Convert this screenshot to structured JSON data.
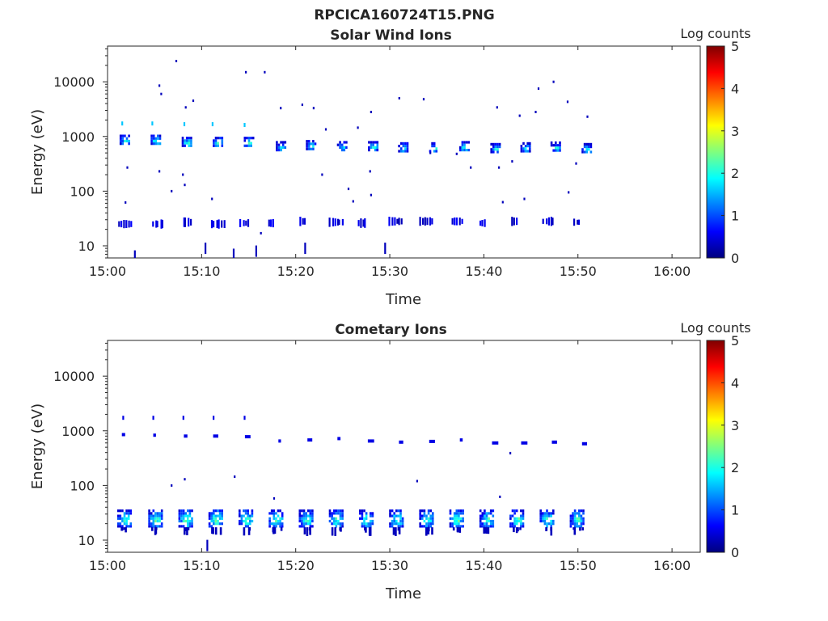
{
  "figure_title": "RPCICA160724T15.PNG",
  "colorscale": [
    "#00007f",
    "#0000ff",
    "#007fff",
    "#00ffff",
    "#7fff7f",
    "#ffff00",
    "#ff7f00",
    "#ff0000",
    "#7f0000"
  ],
  "chart_data": [
    {
      "type": "heatmap",
      "title": "Solar Wind Ions",
      "xlabel": "Time",
      "ylabel": "Energy (eV)",
      "x_ticks": [
        "15:00",
        "15:10",
        "15:20",
        "15:30",
        "15:40",
        "15:50",
        "16:00"
      ],
      "xlim": [
        "15:00",
        "16:03"
      ],
      "y_scale": "log",
      "y_ticks": [
        "10",
        "100",
        "1000",
        "10000"
      ],
      "ylim": [
        6,
        45000
      ],
      "colorbar": {
        "label": "Log counts",
        "ticks": [
          "0",
          "1",
          "2",
          "3",
          "4",
          "5"
        ],
        "range": [
          0,
          5
        ]
      },
      "clusters": [
        {
          "t": 1.8,
          "e": 850,
          "v": 2.2
        },
        {
          "t": 5.1,
          "e": 850,
          "v": 2.4
        },
        {
          "t": 8.4,
          "e": 780,
          "v": 2.3
        },
        {
          "t": 11.7,
          "e": 780,
          "v": 2.4
        },
        {
          "t": 15.0,
          "e": 780,
          "v": 2.4
        },
        {
          "t": 18.4,
          "e": 650,
          "v": 2.0
        },
        {
          "t": 21.6,
          "e": 680,
          "v": 2.1
        },
        {
          "t": 24.9,
          "e": 650,
          "v": 2.0
        },
        {
          "t": 28.2,
          "e": 650,
          "v": 2.2
        },
        {
          "t": 31.4,
          "e": 620,
          "v": 2.1
        },
        {
          "t": 34.7,
          "e": 620,
          "v": 2.1
        },
        {
          "t": 37.9,
          "e": 650,
          "v": 2.3
        },
        {
          "t": 41.2,
          "e": 600,
          "v": 2.0
        },
        {
          "t": 44.4,
          "e": 620,
          "v": 2.0
        },
        {
          "t": 47.6,
          "e": 640,
          "v": 2.0
        },
        {
          "t": 50.9,
          "e": 600,
          "v": 2.1
        }
      ],
      "low_energy_strips": [
        {
          "t": 1.6,
          "e": 25
        },
        {
          "t": 5.2,
          "e": 25
        },
        {
          "t": 8.4,
          "e": 27
        },
        {
          "t": 11.4,
          "e": 25
        },
        {
          "t": 14.5,
          "e": 26
        },
        {
          "t": 17.5,
          "e": 26
        },
        {
          "t": 20.8,
          "e": 28
        },
        {
          "t": 24.0,
          "e": 27
        },
        {
          "t": 27.0,
          "e": 26
        },
        {
          "t": 30.3,
          "e": 28
        },
        {
          "t": 33.6,
          "e": 28
        },
        {
          "t": 37.0,
          "e": 28
        },
        {
          "t": 40.0,
          "e": 26
        },
        {
          "t": 43.3,
          "e": 28
        },
        {
          "t": 46.7,
          "e": 28
        },
        {
          "t": 50.0,
          "e": 27
        }
      ],
      "high_energy_lines": [
        {
          "t": 1.6,
          "e": 1700
        },
        {
          "t": 4.8,
          "e": 1700
        },
        {
          "t": 8.2,
          "e": 1650
        },
        {
          "t": 11.2,
          "e": 1650
        },
        {
          "t": 14.6,
          "e": 1600
        }
      ],
      "scatter": [
        {
          "t": 7.3,
          "e": 24000
        },
        {
          "t": 14.7,
          "e": 15000
        },
        {
          "t": 16.7,
          "e": 15000
        },
        {
          "t": 5.5,
          "e": 8500
        },
        {
          "t": 5.7,
          "e": 6000
        },
        {
          "t": 9.1,
          "e": 4500
        },
        {
          "t": 8.3,
          "e": 3400
        },
        {
          "t": 18.4,
          "e": 3300
        },
        {
          "t": 20.7,
          "e": 3800
        },
        {
          "t": 21.9,
          "e": 3300
        },
        {
          "t": 28.0,
          "e": 2800
        },
        {
          "t": 31.0,
          "e": 5000
        },
        {
          "t": 33.6,
          "e": 4800
        },
        {
          "t": 41.4,
          "e": 3400
        },
        {
          "t": 43.8,
          "e": 2400
        },
        {
          "t": 45.5,
          "e": 2800
        },
        {
          "t": 45.8,
          "e": 7500
        },
        {
          "t": 47.4,
          "e": 10000
        },
        {
          "t": 48.9,
          "e": 4300
        },
        {
          "t": 51.0,
          "e": 2300
        },
        {
          "t": 2.1,
          "e": 270
        },
        {
          "t": 5.5,
          "e": 230
        },
        {
          "t": 8.0,
          "e": 200
        },
        {
          "t": 27.9,
          "e": 230
        },
        {
          "t": 38.6,
          "e": 270
        },
        {
          "t": 41.6,
          "e": 270
        },
        {
          "t": 43.0,
          "e": 350
        },
        {
          "t": 49.8,
          "e": 320
        },
        {
          "t": 1.9,
          "e": 62
        },
        {
          "t": 6.8,
          "e": 100
        },
        {
          "t": 8.2,
          "e": 130
        },
        {
          "t": 11.1,
          "e": 72
        },
        {
          "t": 25.6,
          "e": 110
        },
        {
          "t": 26.1,
          "e": 65
        },
        {
          "t": 28.0,
          "e": 85
        },
        {
          "t": 42.0,
          "e": 63
        },
        {
          "t": 44.3,
          "e": 72
        },
        {
          "t": 49.0,
          "e": 95
        },
        {
          "t": 15.8,
          "e": 8
        },
        {
          "t": 10.4,
          "e": 9
        },
        {
          "t": 21.0,
          "e": 9
        },
        {
          "t": 29.5,
          "e": 9
        },
        {
          "t": 2.9,
          "e": 6.5
        },
        {
          "t": 13.4,
          "e": 7
        },
        {
          "t": 16.3,
          "e": 17
        },
        {
          "t": 22.8,
          "e": 200
        },
        {
          "t": 23.2,
          "e": 1350
        },
        {
          "t": 26.6,
          "e": 1450
        },
        {
          "t": 34.3,
          "e": 500
        },
        {
          "t": 37.1,
          "e": 480
        }
      ]
    },
    {
      "type": "heatmap",
      "title": "Cometary Ions",
      "xlabel": "Time",
      "ylabel": "Energy (eV)",
      "x_ticks": [
        "15:00",
        "15:10",
        "15:20",
        "15:30",
        "15:40",
        "15:50",
        "16:00"
      ],
      "xlim": [
        "15:00",
        "16:03"
      ],
      "y_scale": "log",
      "y_ticks": [
        "10",
        "100",
        "1000",
        "10000"
      ],
      "ylim": [
        6,
        45000
      ],
      "colorbar": {
        "label": "Log counts",
        "ticks": [
          "0",
          "1",
          "2",
          "3",
          "4",
          "5"
        ],
        "range": [
          0,
          5
        ]
      },
      "clusters": [
        {
          "t": 1.8,
          "e": 25,
          "v": 2.3
        },
        {
          "t": 5.1,
          "e": 25,
          "v": 2.4
        },
        {
          "t": 8.3,
          "e": 25,
          "v": 2.5
        },
        {
          "t": 11.5,
          "e": 25,
          "v": 2.5
        },
        {
          "t": 14.7,
          "e": 25,
          "v": 2.4
        },
        {
          "t": 17.9,
          "e": 25,
          "v": 2.4
        },
        {
          "t": 21.1,
          "e": 25,
          "v": 2.3
        },
        {
          "t": 24.3,
          "e": 25,
          "v": 2.3
        },
        {
          "t": 27.5,
          "e": 25,
          "v": 2.3
        },
        {
          "t": 30.7,
          "e": 25,
          "v": 2.3
        },
        {
          "t": 33.9,
          "e": 25,
          "v": 2.3
        },
        {
          "t": 37.1,
          "e": 25,
          "v": 2.4
        },
        {
          "t": 40.3,
          "e": 25,
          "v": 2.3
        },
        {
          "t": 43.5,
          "e": 25,
          "v": 2.4
        },
        {
          "t": 46.7,
          "e": 25,
          "v": 2.3
        },
        {
          "t": 49.9,
          "e": 25,
          "v": 2.3
        }
      ],
      "mid_lines": [
        {
          "t": 1.7,
          "e": 850
        },
        {
          "t": 5.0,
          "e": 830
        },
        {
          "t": 8.3,
          "e": 800
        },
        {
          "t": 11.5,
          "e": 800
        },
        {
          "t": 14.9,
          "e": 780
        },
        {
          "t": 18.3,
          "e": 650
        },
        {
          "t": 21.5,
          "e": 680
        },
        {
          "t": 24.6,
          "e": 720
        },
        {
          "t": 28.0,
          "e": 650
        },
        {
          "t": 31.2,
          "e": 620
        },
        {
          "t": 34.5,
          "e": 640
        },
        {
          "t": 37.6,
          "e": 680
        },
        {
          "t": 41.2,
          "e": 600
        },
        {
          "t": 44.3,
          "e": 600
        },
        {
          "t": 47.5,
          "e": 620
        },
        {
          "t": 50.7,
          "e": 580
        }
      ],
      "high_energy_lines": [
        {
          "t": 1.7,
          "e": 1700
        },
        {
          "t": 4.9,
          "e": 1700
        },
        {
          "t": 8.1,
          "e": 1700
        },
        {
          "t": 11.3,
          "e": 1700
        },
        {
          "t": 14.6,
          "e": 1700
        }
      ],
      "scatter": [
        {
          "t": 6.8,
          "e": 100
        },
        {
          "t": 8.2,
          "e": 130
        },
        {
          "t": 13.5,
          "e": 145
        },
        {
          "t": 17.7,
          "e": 58
        },
        {
          "t": 32.9,
          "e": 120
        },
        {
          "t": 41.7,
          "e": 62
        },
        {
          "t": 42.8,
          "e": 390
        },
        {
          "t": 10.6,
          "e": 8
        }
      ]
    }
  ]
}
